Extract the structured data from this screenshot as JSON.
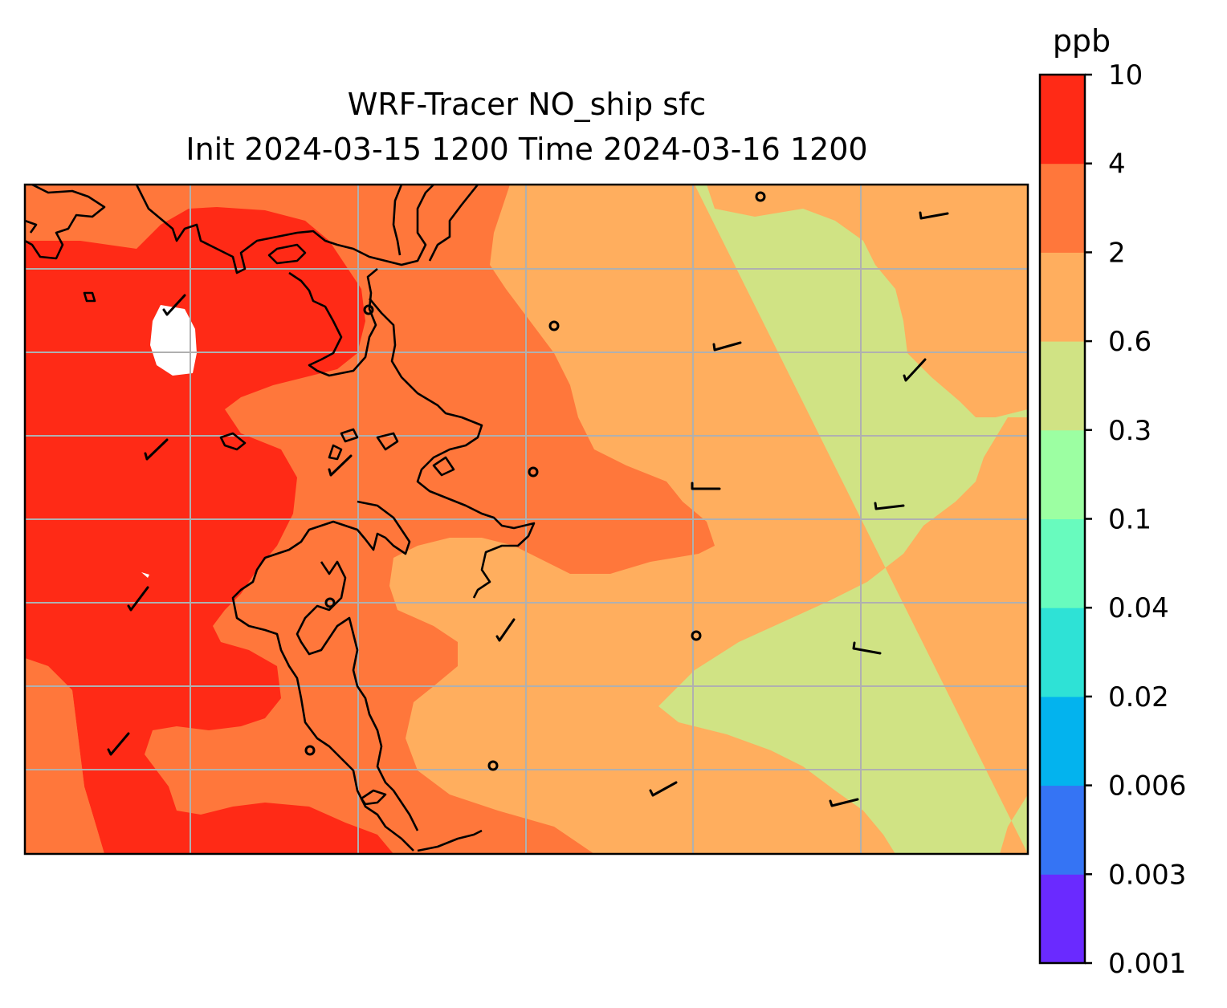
{
  "title_line1": "WRF-Tracer NO_ship sfc",
  "title_line2": "Init 2024-03-15 1200 Time 2024-03-16 1200",
  "colorbar": {
    "unit": "ppb",
    "ticks": [
      "0.001",
      "0.003",
      "0.006",
      "0.02",
      "0.04",
      "0.1",
      "0.3",
      "0.6",
      "2",
      "4",
      "10"
    ],
    "colors": [
      "#6a2aff",
      "#3574f4",
      "#03b3ee",
      "#2ee2d6",
      "#68fbbe",
      "#9cffa2",
      "#d0e384",
      "#ffae5e",
      "#ff773b",
      "#ff2a16"
    ]
  },
  "map": {
    "field_colors": {
      "high": "#ff2a16",
      "mid_high": "#ff773b",
      "mid": "#ffae5e",
      "low": "#d0e384",
      "missing": "#ffffff"
    },
    "coastline_color": "#000000",
    "gridline_color": "#b0b0b0",
    "wind_barb_icon": "wind-barb-icon",
    "calm_icon": "calm-circle-icon"
  }
}
